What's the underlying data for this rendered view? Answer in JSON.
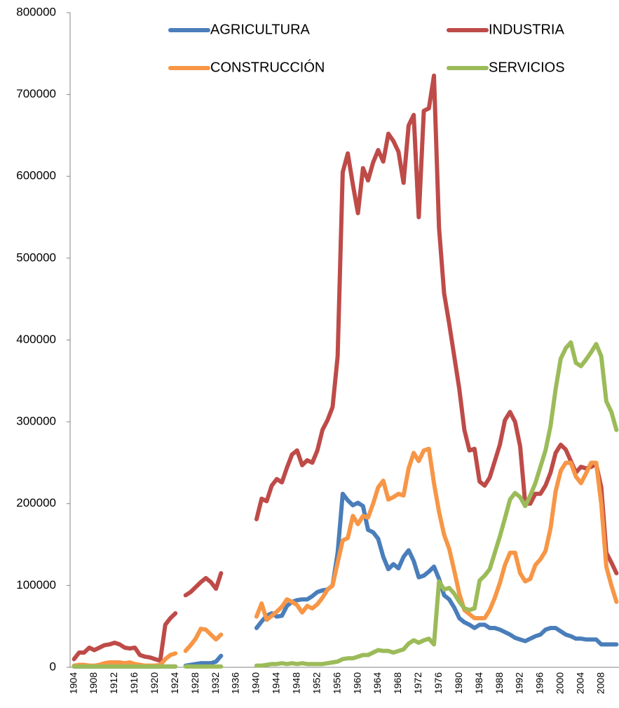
{
  "chart_data": {
    "type": "line",
    "categories": [
      "1904",
      null,
      null,
      null,
      "1908",
      null,
      null,
      null,
      "1912",
      null,
      null,
      null,
      "1916",
      null,
      null,
      null,
      "1920",
      null,
      null,
      null,
      "1924",
      null,
      null,
      null,
      "1928",
      null,
      null,
      null,
      "1932",
      null,
      null,
      null,
      "1936",
      null,
      null,
      null,
      "1940",
      null,
      null,
      null,
      "1944",
      null,
      null,
      null,
      "1948",
      null,
      null,
      null,
      "1952",
      null,
      null,
      null,
      "1956",
      null,
      null,
      null,
      "1960",
      null,
      null,
      null,
      "1964",
      null,
      null,
      null,
      "1968",
      null,
      null,
      null,
      "1972",
      null,
      null,
      null,
      "1976",
      null,
      null,
      null,
      "1980",
      null,
      null,
      null,
      "1984",
      null,
      null,
      null,
      "1988",
      null,
      null,
      null,
      "1992",
      null,
      null,
      null,
      "1996",
      null,
      null,
      null,
      "2000",
      null,
      null,
      null,
      "2004",
      null,
      null,
      null,
      "2008",
      null,
      null,
      null
    ],
    "series": [
      {
        "name": "AGRICULTURA",
        "color": "#4a7ebb",
        "values": [
          1000,
          1000,
          1000,
          1000,
          1000,
          1000,
          1000,
          1000,
          1000,
          1000,
          1000,
          1000,
          1000,
          1000,
          1000,
          1000,
          1000,
          1000,
          1000,
          1000,
          1000,
          null,
          2000,
          3000,
          4000,
          5000,
          5000,
          5000,
          7000,
          14000,
          null,
          null,
          null,
          null,
          null,
          null,
          48000,
          56000,
          63000,
          66000,
          62000,
          63000,
          75000,
          80000,
          82000,
          83000,
          83000,
          87000,
          92000,
          94000,
          95000,
          100000,
          140000,
          212000,
          204000,
          198000,
          201000,
          197000,
          168000,
          165000,
          157000,
          135000,
          120000,
          126000,
          121000,
          135000,
          143000,
          130000,
          110000,
          112000,
          117000,
          123000,
          108000,
          88000,
          83000,
          73000,
          60000,
          55000,
          52000,
          48000,
          52000,
          52000,
          48000,
          48000,
          46000,
          43000,
          40000,
          36000,
          34000,
          32000,
          35000,
          38000,
          40000,
          46000,
          48000,
          48000,
          44000,
          40000,
          38000,
          35000,
          35000,
          34000,
          34000,
          34000,
          28000,
          28000,
          28000,
          28000
        ]
      },
      {
        "name": "INDUSTRIA",
        "color": "#be4b48",
        "values": [
          10000,
          18000,
          18000,
          24000,
          21000,
          24000,
          27000,
          28000,
          30000,
          28000,
          24000,
          23000,
          24000,
          15000,
          13000,
          12000,
          10000,
          8000,
          52000,
          60000,
          66000,
          null,
          88000,
          92000,
          98000,
          104000,
          109000,
          104000,
          96000,
          115000,
          null,
          null,
          null,
          null,
          null,
          null,
          181000,
          206000,
          203000,
          222000,
          230000,
          226000,
          244000,
          260000,
          265000,
          247000,
          253000,
          250000,
          265000,
          290000,
          302000,
          318000,
          380000,
          605000,
          628000,
          590000,
          555000,
          610000,
          595000,
          617000,
          632000,
          618000,
          652000,
          643000,
          630000,
          592000,
          662000,
          675000,
          550000,
          680000,
          683000,
          723000,
          537000,
          457000,
          420000,
          380000,
          340000,
          290000,
          265000,
          267000,
          227000,
          222000,
          232000,
          252000,
          272000,
          302000,
          312000,
          300000,
          270000,
          200000,
          200000,
          212000,
          212000,
          222000,
          238000,
          262000,
          272000,
          266000,
          252000,
          238000,
          245000,
          243000,
          245000,
          248000,
          220000,
          140000,
          128000,
          115000
        ]
      },
      {
        "name": "CONSTRUCCIÓN",
        "color": "#f79646",
        "values": [
          2000,
          3000,
          3000,
          2000,
          2000,
          3000,
          5000,
          6000,
          6000,
          6000,
          5000,
          6000,
          4000,
          3000,
          2000,
          2000,
          2000,
          3000,
          10000,
          15000,
          17000,
          null,
          20000,
          27000,
          35000,
          47000,
          46000,
          40000,
          34000,
          40000,
          null,
          null,
          null,
          null,
          null,
          null,
          62000,
          78000,
          58000,
          63000,
          68000,
          74000,
          83000,
          80000,
          76000,
          67000,
          75000,
          72000,
          77000,
          85000,
          95000,
          100000,
          128000,
          155000,
          158000,
          185000,
          175000,
          185000,
          183000,
          200000,
          220000,
          228000,
          205000,
          208000,
          212000,
          210000,
          243000,
          262000,
          252000,
          265000,
          267000,
          225000,
          190000,
          162000,
          145000,
          118000,
          90000,
          70000,
          65000,
          60000,
          60000,
          60000,
          70000,
          85000,
          103000,
          125000,
          140000,
          140000,
          115000,
          105000,
          108000,
          125000,
          132000,
          142000,
          170000,
          215000,
          240000,
          250000,
          250000,
          233000,
          225000,
          237000,
          250000,
          250000,
          200000,
          123000,
          100000,
          80000
        ]
      },
      {
        "name": "SERVICIOS",
        "color": "#9bbb59",
        "values": [
          1000,
          1000,
          1000,
          1000,
          1000,
          1000,
          1000,
          1000,
          1000,
          1000,
          1000,
          1000,
          1000,
          1000,
          1000,
          1000,
          1000,
          1000,
          1000,
          1000,
          1000,
          null,
          1000,
          1000,
          1000,
          1000,
          1000,
          1000,
          1000,
          1000,
          null,
          null,
          null,
          null,
          null,
          null,
          2000,
          2000,
          3000,
          4000,
          4000,
          5000,
          4000,
          5000,
          4000,
          5000,
          4000,
          4000,
          4000,
          4000,
          5000,
          6000,
          7000,
          10000,
          11000,
          11000,
          13000,
          15000,
          15000,
          18000,
          21000,
          20000,
          20000,
          18000,
          20000,
          22000,
          29000,
          33000,
          30000,
          33000,
          35000,
          28000,
          105000,
          95000,
          97000,
          90000,
          80000,
          72000,
          70000,
          72000,
          106000,
          112000,
          120000,
          140000,
          160000,
          182000,
          205000,
          213000,
          208000,
          197000,
          210000,
          225000,
          245000,
          265000,
          295000,
          340000,
          377000,
          390000,
          397000,
          372000,
          368000,
          376000,
          385000,
          395000,
          380000,
          325000,
          312000,
          290000
        ]
      }
    ],
    "ylim": [
      0,
      800000
    ],
    "yticks": [
      0,
      100000,
      200000,
      300000,
      400000,
      500000,
      600000,
      700000,
      800000
    ],
    "grid": false,
    "legend": "top"
  }
}
